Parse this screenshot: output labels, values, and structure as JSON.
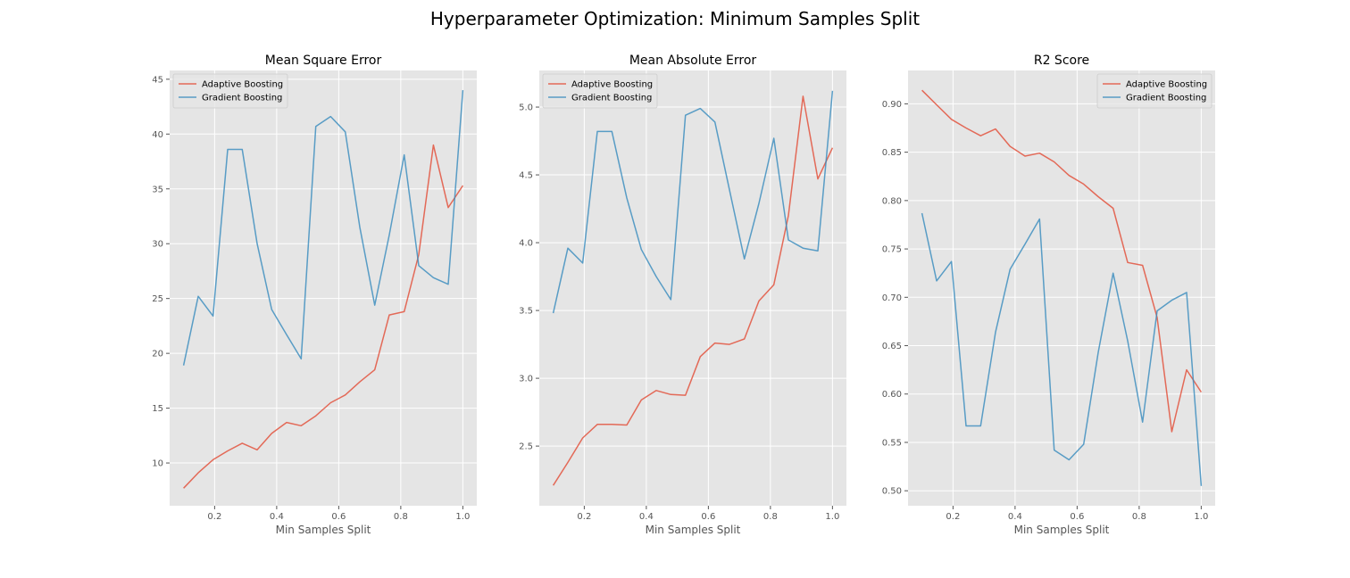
{
  "figure": {
    "title": "Hyperparameter Optimization: Minimum Samples Split"
  },
  "colors": {
    "background": "#e5e5e5",
    "grid": "#ffffff",
    "adaptive": "#e24a33",
    "gradient": "#348abd",
    "tick_text": "#555555"
  },
  "chart_data": [
    {
      "type": "line",
      "title": "Mean Square Error",
      "xlabel": "Min Samples Split",
      "ylabel": "",
      "xlim": [
        0.055,
        1.045
      ],
      "ylim": [
        6.1,
        45.8
      ],
      "xticks": [
        0.2,
        0.4,
        0.6,
        0.8,
        1.0
      ],
      "xtick_labels": [
        "0.2",
        "0.4",
        "0.6",
        "0.8",
        "1.0"
      ],
      "yticks": [
        10,
        15,
        20,
        25,
        30,
        35,
        40,
        45
      ],
      "ytick_labels": [
        "10",
        "15",
        "20",
        "25",
        "30",
        "35",
        "40",
        "45"
      ],
      "grid": true,
      "legend_position": "upper-left",
      "x": [
        0.1,
        0.147,
        0.195,
        0.242,
        0.289,
        0.337,
        0.384,
        0.432,
        0.479,
        0.526,
        0.574,
        0.621,
        0.668,
        0.716,
        0.763,
        0.811,
        0.858,
        0.905,
        0.953,
        1.0
      ],
      "series": [
        {
          "name": "Adaptive Boosting",
          "values": [
            7.7,
            9.1,
            10.3,
            11.1,
            11.8,
            11.2,
            12.7,
            13.7,
            13.4,
            14.3,
            15.5,
            16.2,
            17.4,
            18.5,
            23.5,
            23.8,
            29.0,
            39.0,
            33.3,
            35.3
          ]
        },
        {
          "name": "Gradient Boosting",
          "values": [
            18.9,
            25.2,
            23.4,
            38.6,
            38.6,
            30.0,
            24.0,
            21.7,
            19.5,
            40.7,
            41.6,
            40.2,
            31.5,
            24.4,
            30.8,
            38.1,
            28.0,
            26.9,
            26.3,
            44.0
          ]
        }
      ]
    },
    {
      "type": "line",
      "title": "Mean Absolute Error",
      "xlabel": "Min Samples Split",
      "ylabel": "",
      "xlim": [
        0.055,
        1.045
      ],
      "ylim": [
        2.06,
        5.27
      ],
      "xticks": [
        0.2,
        0.4,
        0.6,
        0.8,
        1.0
      ],
      "xtick_labels": [
        "0.2",
        "0.4",
        "0.6",
        "0.8",
        "1.0"
      ],
      "yticks": [
        2.5,
        3.0,
        3.5,
        4.0,
        4.5,
        5.0
      ],
      "ytick_labels": [
        "2.5",
        "3.0",
        "3.5",
        "4.0",
        "4.5",
        "5.0"
      ],
      "grid": true,
      "legend_position": "upper-left",
      "x": [
        0.1,
        0.147,
        0.195,
        0.242,
        0.289,
        0.337,
        0.384,
        0.432,
        0.479,
        0.526,
        0.574,
        0.621,
        0.668,
        0.716,
        0.763,
        0.811,
        0.858,
        0.905,
        0.953,
        1.0
      ],
      "series": [
        {
          "name": "Adaptive Boosting",
          "values": [
            2.21,
            2.38,
            2.56,
            2.66,
            2.66,
            2.655,
            2.84,
            2.91,
            2.88,
            2.875,
            3.16,
            3.26,
            3.25,
            3.29,
            3.57,
            3.69,
            4.2,
            5.08,
            4.47,
            4.7
          ]
        },
        {
          "name": "Gradient Boosting",
          "values": [
            3.48,
            3.96,
            3.85,
            4.82,
            4.82,
            4.33,
            3.95,
            3.75,
            3.58,
            4.94,
            4.99,
            4.89,
            4.39,
            3.88,
            4.29,
            4.77,
            4.02,
            3.96,
            3.94,
            5.12
          ]
        }
      ]
    },
    {
      "type": "line",
      "title": "R2 Score",
      "xlabel": "Min Samples Split",
      "ylabel": "",
      "xlim": [
        0.055,
        1.045
      ],
      "ylim": [
        0.4845,
        0.9345
      ],
      "xticks": [
        0.2,
        0.4,
        0.6,
        0.8,
        1.0
      ],
      "xtick_labels": [
        "0.2",
        "0.4",
        "0.6",
        "0.8",
        "1.0"
      ],
      "yticks": [
        0.5,
        0.55,
        0.6,
        0.65,
        0.7,
        0.75,
        0.8,
        0.85,
        0.9
      ],
      "ytick_labels": [
        "0.50",
        "0.55",
        "0.60",
        "0.65",
        "0.70",
        "0.75",
        "0.80",
        "0.85",
        "0.90"
      ],
      "grid": true,
      "legend_position": "upper-right",
      "x": [
        0.1,
        0.147,
        0.195,
        0.242,
        0.289,
        0.337,
        0.384,
        0.432,
        0.479,
        0.526,
        0.574,
        0.621,
        0.668,
        0.716,
        0.763,
        0.811,
        0.858,
        0.905,
        0.953,
        1.0
      ],
      "series": [
        {
          "name": "Adaptive Boosting",
          "values": [
            0.914,
            0.899,
            0.884,
            0.875,
            0.867,
            0.874,
            0.856,
            0.846,
            0.849,
            0.84,
            0.826,
            0.817,
            0.804,
            0.792,
            0.736,
            0.733,
            0.679,
            0.561,
            0.625,
            0.602
          ]
        },
        {
          "name": "Gradient Boosting",
          "values": [
            0.787,
            0.717,
            0.737,
            0.567,
            0.567,
            0.664,
            0.729,
            0.755,
            0.781,
            0.542,
            0.532,
            0.548,
            0.643,
            0.725,
            0.655,
            0.571,
            0.686,
            0.697,
            0.705,
            0.505
          ]
        }
      ]
    }
  ]
}
